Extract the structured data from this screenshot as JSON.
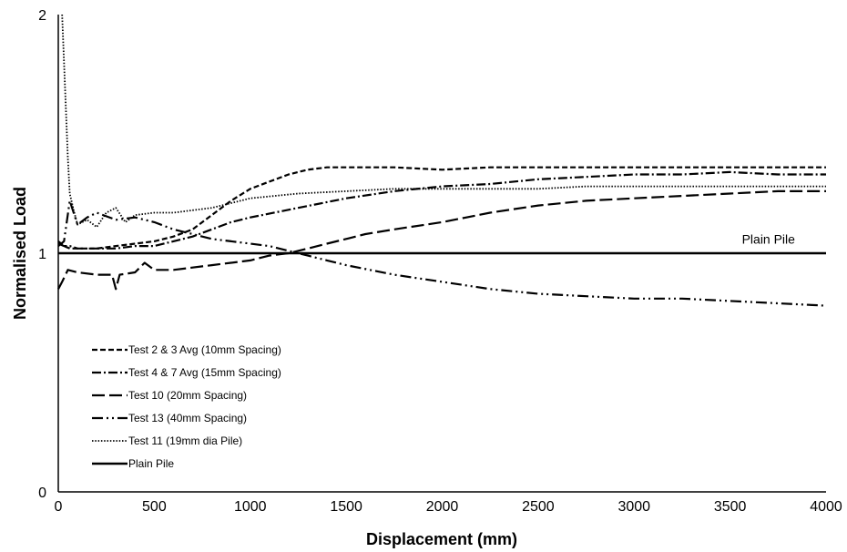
{
  "chart_data": {
    "type": "line",
    "title": "",
    "xlabel": "Displacement (mm)",
    "ylabel": "Normalised Load",
    "xlim": [
      0,
      4000
    ],
    "ylim": [
      0,
      2
    ],
    "x_ticks": [
      0,
      500,
      1000,
      1500,
      2000,
      2500,
      3000,
      3500,
      4000
    ],
    "y_ticks": [
      0,
      1,
      2
    ],
    "grid": false,
    "legend_position": "bottom-left",
    "annotations": [
      {
        "text": "Plain Pile",
        "x": 3700,
        "y": 1.04
      }
    ],
    "series": [
      {
        "name": "Test 2 & 3 Avg (10mm Spacing)",
        "dash": "6,3",
        "width": 2.2,
        "x": [
          0,
          30,
          60,
          100,
          200,
          300,
          400,
          500,
          600,
          700,
          800,
          900,
          1000,
          1100,
          1200,
          1300,
          1400,
          1500,
          1750,
          2000,
          2250,
          2500,
          2750,
          3000,
          3250,
          3500,
          3750,
          4000
        ],
        "y": [
          1.05,
          1.03,
          1.02,
          1.02,
          1.02,
          1.03,
          1.04,
          1.05,
          1.07,
          1.1,
          1.16,
          1.22,
          1.27,
          1.3,
          1.33,
          1.35,
          1.36,
          1.36,
          1.36,
          1.35,
          1.36,
          1.36,
          1.36,
          1.36,
          1.36,
          1.36,
          1.36,
          1.36
        ]
      },
      {
        "name": "Test 4 & 7 Avg (15mm Spacing)",
        "dash": "10,3,2,3",
        "width": 2.2,
        "x": [
          0,
          30,
          60,
          100,
          200,
          300,
          400,
          500,
          600,
          700,
          800,
          900,
          1000,
          1250,
          1500,
          1750,
          2000,
          2250,
          2500,
          2750,
          3000,
          3250,
          3500,
          3750,
          4000
        ],
        "y": [
          1.04,
          1.03,
          1.03,
          1.02,
          1.02,
          1.02,
          1.03,
          1.03,
          1.05,
          1.07,
          1.1,
          1.13,
          1.15,
          1.19,
          1.23,
          1.26,
          1.28,
          1.29,
          1.31,
          1.32,
          1.33,
          1.33,
          1.34,
          1.33,
          1.33
        ]
      },
      {
        "name": "Test 10 (20mm Spacing)",
        "dash": "14,5",
        "width": 2.2,
        "x": [
          0,
          20,
          50,
          100,
          200,
          280,
          300,
          320,
          400,
          450,
          500,
          600,
          700,
          800,
          900,
          1000,
          1100,
          1200,
          1300,
          1400,
          1500,
          1600,
          1750,
          2000,
          2250,
          2500,
          2750,
          3000,
          3250,
          3500,
          3750,
          4000
        ],
        "y": [
          0.85,
          0.88,
          0.93,
          0.92,
          0.91,
          0.91,
          0.85,
          0.91,
          0.92,
          0.96,
          0.93,
          0.93,
          0.94,
          0.95,
          0.96,
          0.97,
          0.99,
          1.0,
          1.02,
          1.04,
          1.06,
          1.08,
          1.1,
          1.13,
          1.17,
          1.2,
          1.22,
          1.23,
          1.24,
          1.25,
          1.26,
          1.26
        ]
      },
      {
        "name": "Test 13 (40mm Spacing)",
        "dash": "12,4,2,4,2,4",
        "width": 2.2,
        "x": [
          0,
          30,
          60,
          100,
          150,
          200,
          300,
          400,
          500,
          600,
          700,
          800,
          900,
          1000,
          1100,
          1200,
          1300,
          1400,
          1500,
          1750,
          2000,
          2250,
          2500,
          2750,
          3000,
          3250,
          3500,
          3750,
          4000
        ],
        "y": [
          1.03,
          1.05,
          1.22,
          1.12,
          1.15,
          1.17,
          1.14,
          1.15,
          1.13,
          1.1,
          1.08,
          1.06,
          1.05,
          1.04,
          1.03,
          1.01,
          0.99,
          0.97,
          0.95,
          0.91,
          0.88,
          0.85,
          0.83,
          0.82,
          0.81,
          0.81,
          0.8,
          0.79,
          0.78
        ]
      },
      {
        "name": "Test 11 (19mm dia Pile)",
        "dash": "1.5,1.8",
        "width": 1.8,
        "x": [
          20,
          30,
          40,
          50,
          60,
          80,
          100,
          150,
          200,
          250,
          300,
          350,
          400,
          500,
          600,
          700,
          800,
          900,
          1000,
          1250,
          1500,
          1750,
          2000,
          2250,
          2500,
          2750,
          3000,
          3250,
          3500,
          3750,
          4000
        ],
        "y": [
          2.0,
          1.8,
          1.6,
          1.4,
          1.25,
          1.18,
          1.12,
          1.14,
          1.11,
          1.17,
          1.19,
          1.13,
          1.16,
          1.17,
          1.17,
          1.18,
          1.19,
          1.21,
          1.23,
          1.25,
          1.26,
          1.27,
          1.27,
          1.27,
          1.27,
          1.28,
          1.28,
          1.28,
          1.28,
          1.28,
          1.28
        ]
      },
      {
        "name": "Plain Pile",
        "dash": "",
        "width": 2.4,
        "x": [
          0,
          4000
        ],
        "y": [
          1.0,
          1.0
        ]
      }
    ]
  }
}
